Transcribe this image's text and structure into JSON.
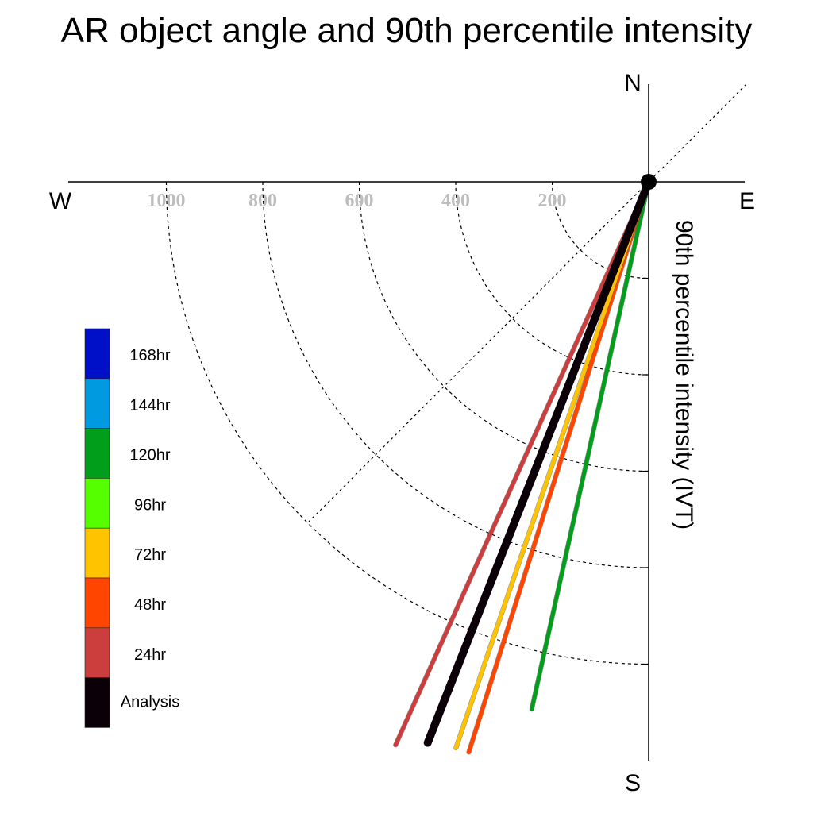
{
  "title": "AR object angle and 90th percentile intensity",
  "chart_data": {
    "type": "polar-vector",
    "title": "AR object angle and 90th percentile intensity",
    "compass": {
      "north": "N",
      "south": "S",
      "east": "E",
      "west": "W"
    },
    "radial_label": "90th percentile intensity (IVT)",
    "radial_ticks": [
      200,
      400,
      600,
      800,
      1000
    ],
    "radial_max": 1200,
    "angle_convention": "degrees west of south",
    "series": [
      {
        "name": "Analysis",
        "color": "#0b0008",
        "angle_deg": 21.5,
        "intensity": 1250
      },
      {
        "name": "24hr",
        "color": "#cc3d3d",
        "angle_deg": 24.2,
        "intensity": 1280
      },
      {
        "name": "48hr",
        "color": "#ff4500",
        "angle_deg": 17.5,
        "intensity": 1240
      },
      {
        "name": "72hr",
        "color": "#ffc300",
        "angle_deg": 18.8,
        "intensity": 1240
      },
      {
        "name": "120hr",
        "color": "#009e1a",
        "angle_deg": 12.5,
        "intensity": 1120
      }
    ],
    "legend": [
      {
        "label": "168hr",
        "color": "#0010c8"
      },
      {
        "label": "144hr",
        "color": "#009ae0"
      },
      {
        "label": "120hr",
        "color": "#009e1a"
      },
      {
        "label": "96hr",
        "color": "#55ff00"
      },
      {
        "label": "72hr",
        "color": "#ffc300"
      },
      {
        "label": "48hr",
        "color": "#ff4500"
      },
      {
        "label": "24hr",
        "color": "#cc3d3d"
      },
      {
        "label": "Analysis",
        "color": "#0b0008"
      }
    ]
  }
}
